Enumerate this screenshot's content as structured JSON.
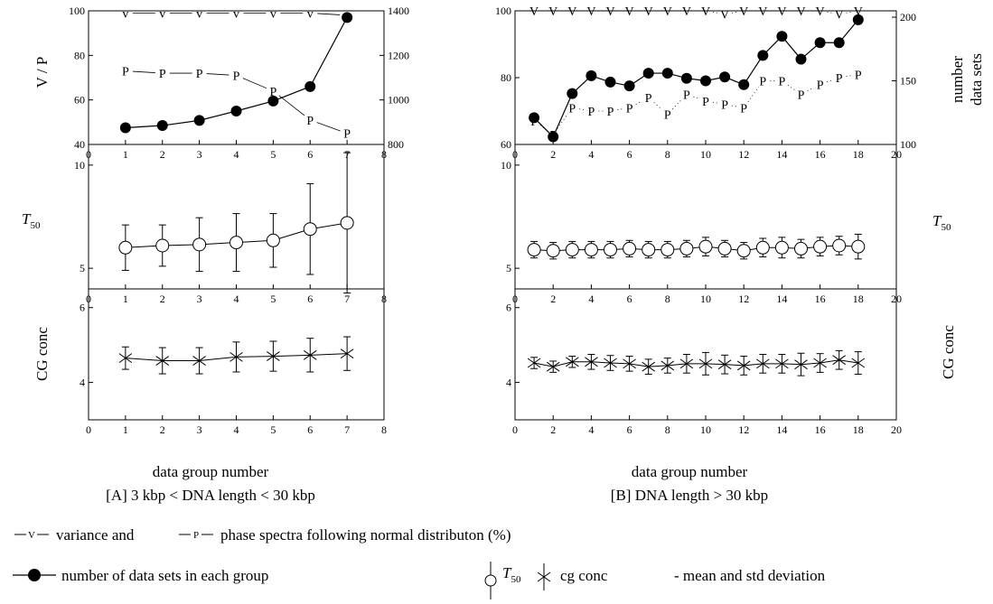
{
  "chart_data": [
    {
      "id": "A",
      "type": "line",
      "caption": "[A]  3 kbp < DNA length  < 30 kbp",
      "xlabel": "data group number",
      "xlim": [
        0,
        8
      ],
      "xticks": [
        "0",
        "1",
        "2",
        "3",
        "4",
        "5",
        "6",
        "7",
        "8"
      ],
      "x": [
        1,
        2,
        3,
        4,
        5,
        6,
        7
      ],
      "panels": [
        {
          "name": "top",
          "ylabel": "V / P",
          "ylim": [
            40,
            100
          ],
          "yticks": [
            "40",
            "60",
            "80",
            "100"
          ],
          "y2lim": [
            800,
            1400
          ],
          "y2ticks": [
            "800",
            "1000",
            "1200",
            "1400"
          ],
          "series": [
            {
              "name": "V",
              "values": [
                99,
                99,
                99,
                99,
                99,
                99,
                98
              ]
            },
            {
              "name": "P",
              "values": [
                73,
                72,
                72,
                71,
                64,
                51,
                45
              ]
            },
            {
              "name": "number of data sets",
              "axis": "right",
              "values": [
                875,
                885,
                908,
                950,
                995,
                1060,
                1370
              ]
            }
          ]
        },
        {
          "name": "middle",
          "ylabel": "T50",
          "ylim": [
            4,
            11
          ],
          "yticks": [
            "5",
            "10"
          ],
          "series": [
            {
              "name": "T50",
              "values": [
                6.0,
                6.1,
                6.15,
                6.25,
                6.35,
                6.9,
                7.2
              ],
              "err": [
                1.1,
                1.0,
                1.3,
                1.4,
                1.3,
                2.2,
                3.4
              ]
            }
          ]
        },
        {
          "name": "bottom",
          "ylabel": "CG conc",
          "ylim": [
            3,
            6.5
          ],
          "yticks": [
            "4",
            "6"
          ],
          "series": [
            {
              "name": "cg conc",
              "values": [
                4.65,
                4.58,
                4.58,
                4.68,
                4.7,
                4.73,
                4.77
              ],
              "err": [
                0.3,
                0.35,
                0.35,
                0.4,
                0.4,
                0.45,
                0.45
              ]
            }
          ]
        }
      ]
    },
    {
      "id": "B",
      "type": "line",
      "caption": "[B] DNA length > 30 kbp",
      "xlabel": "data group number",
      "xlim": [
        0,
        20
      ],
      "xticks": [
        "0",
        "2",
        "4",
        "6",
        "8",
        "10",
        "12",
        "14",
        "16",
        "18",
        "20"
      ],
      "x": [
        1,
        2,
        3,
        4,
        5,
        6,
        7,
        8,
        9,
        10,
        11,
        12,
        13,
        14,
        15,
        16,
        17,
        18
      ],
      "panels": [
        {
          "name": "top",
          "y2label_line1": "number",
          "y2label_line2": "data  sets",
          "ylim": [
            60,
            100
          ],
          "yticks": [
            "60",
            "80",
            "100"
          ],
          "y2lim": [
            100,
            205
          ],
          "y2ticks": [
            "100",
            "150",
            "200"
          ],
          "series": [
            {
              "name": "V",
              "values": [
                100,
                100,
                100,
                100,
                100,
                100,
                100,
                100,
                100,
                100,
                99,
                100,
                100,
                100,
                100,
                100,
                99,
                100
              ]
            },
            {
              "name": "P",
              "values": [
                67,
                63,
                71,
                70,
                70,
                71,
                74,
                69,
                75,
                73,
                72,
                71,
                79,
                79,
                75,
                78,
                80,
                81
              ]
            },
            {
              "name": "number of data sets",
              "axis": "right",
              "values": [
                121,
                106,
                140,
                154,
                149,
                146,
                156,
                156,
                152,
                150,
                153,
                147,
                170,
                185,
                167,
                180,
                180,
                198
              ]
            }
          ]
        },
        {
          "name": "middle",
          "ylabel": "T50",
          "ylim": [
            4,
            11
          ],
          "yticks": [
            "5",
            "10"
          ],
          "series": [
            {
              "name": "T50",
              "values": [
                5.9,
                5.85,
                5.9,
                5.9,
                5.9,
                5.95,
                5.9,
                5.9,
                5.95,
                6.05,
                5.95,
                5.85,
                6.0,
                6.0,
                5.95,
                6.05,
                6.1,
                6.05
              ],
              "err": [
                0.4,
                0.4,
                0.4,
                0.4,
                0.4,
                0.4,
                0.4,
                0.4,
                0.4,
                0.45,
                0.4,
                0.4,
                0.45,
                0.5,
                0.45,
                0.45,
                0.45,
                0.6
              ]
            }
          ]
        },
        {
          "name": "bottom",
          "ylabel": "CG conc",
          "ylim": [
            3,
            6.5
          ],
          "yticks": [
            "4",
            "6"
          ],
          "series": [
            {
              "name": "cg conc",
              "values": [
                4.52,
                4.42,
                4.55,
                4.55,
                4.52,
                4.5,
                4.42,
                4.45,
                4.5,
                4.5,
                4.48,
                4.45,
                4.5,
                4.5,
                4.48,
                4.52,
                4.6,
                4.52
              ],
              "err": [
                0.15,
                0.15,
                0.15,
                0.2,
                0.2,
                0.2,
                0.2,
                0.2,
                0.25,
                0.3,
                0.25,
                0.25,
                0.25,
                0.25,
                0.3,
                0.25,
                0.25,
                0.3
              ]
            }
          ]
        }
      ]
    }
  ],
  "legend": {
    "line1": "variance and",
    "line1b": "phase spectra  following  normal distributon (%)",
    "line2": "number of data sets in each group",
    "t50": "T",
    "t50_sub": "50",
    "cg": "cg conc",
    "mean": "- mean and std deviation",
    "v_glyph": "V",
    "p_glyph": "P"
  }
}
